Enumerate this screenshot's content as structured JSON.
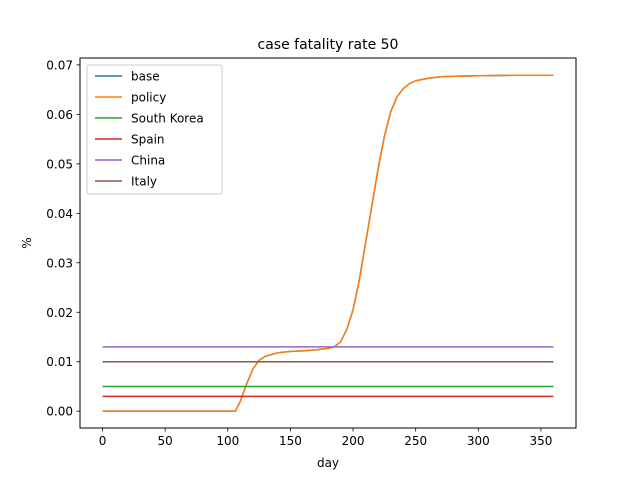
{
  "chart_data": {
    "type": "line",
    "title": "case fatality rate 50",
    "xlabel": "day",
    "ylabel": "%",
    "xlim": [
      -18,
      378
    ],
    "ylim": [
      -0.0034,
      0.0714
    ],
    "xticks": [
      0,
      50,
      100,
      150,
      200,
      250,
      300,
      350
    ],
    "yticks": [
      0.0,
      0.01,
      0.02,
      0.03,
      0.04,
      0.05,
      0.06,
      0.07
    ],
    "ytick_labels": [
      "0.00",
      "0.01",
      "0.02",
      "0.03",
      "0.04",
      "0.05",
      "0.06",
      "0.07"
    ],
    "grid": false,
    "legend_position": "upper-left",
    "series": [
      {
        "name": "base",
        "color": "#1f77b4",
        "points": [
          [
            0,
            0
          ],
          [
            100,
            0
          ],
          [
            106,
            0
          ],
          [
            110,
            0.002
          ],
          [
            115,
            0.0055
          ],
          [
            120,
            0.0085
          ],
          [
            125,
            0.0103
          ],
          [
            130,
            0.0111
          ],
          [
            140,
            0.0118
          ],
          [
            150,
            0.0121
          ],
          [
            160,
            0.0122
          ],
          [
            170,
            0.0124
          ],
          [
            180,
            0.0127
          ],
          [
            185,
            0.013
          ],
          [
            190,
            0.014
          ],
          [
            195,
            0.0165
          ],
          [
            200,
            0.0205
          ],
          [
            205,
            0.0265
          ],
          [
            210,
            0.034
          ],
          [
            215,
            0.0415
          ],
          [
            220,
            0.049
          ],
          [
            225,
            0.0555
          ],
          [
            230,
            0.0605
          ],
          [
            235,
            0.0635
          ],
          [
            240,
            0.0652
          ],
          [
            245,
            0.0662
          ],
          [
            250,
            0.0668
          ],
          [
            260,
            0.0673
          ],
          [
            270,
            0.0676
          ],
          [
            280,
            0.0677
          ],
          [
            300,
            0.0678
          ],
          [
            330,
            0.0679
          ],
          [
            360,
            0.0679
          ]
        ]
      },
      {
        "name": "policy",
        "color": "#ff7f0e",
        "points": [
          [
            0,
            0
          ],
          [
            100,
            0
          ],
          [
            106,
            0
          ],
          [
            110,
            0.002
          ],
          [
            115,
            0.0055
          ],
          [
            120,
            0.0085
          ],
          [
            125,
            0.0103
          ],
          [
            130,
            0.0111
          ],
          [
            140,
            0.0118
          ],
          [
            150,
            0.0121
          ],
          [
            160,
            0.0122
          ],
          [
            170,
            0.0124
          ],
          [
            180,
            0.0127
          ],
          [
            185,
            0.013
          ],
          [
            190,
            0.014
          ],
          [
            195,
            0.0165
          ],
          [
            200,
            0.0205
          ],
          [
            205,
            0.0265
          ],
          [
            210,
            0.034
          ],
          [
            215,
            0.0415
          ],
          [
            220,
            0.049
          ],
          [
            225,
            0.0555
          ],
          [
            230,
            0.0605
          ],
          [
            235,
            0.0635
          ],
          [
            240,
            0.0652
          ],
          [
            245,
            0.0662
          ],
          [
            250,
            0.0668
          ],
          [
            260,
            0.0673
          ],
          [
            270,
            0.0676
          ],
          [
            280,
            0.0677
          ],
          [
            300,
            0.0678
          ],
          [
            330,
            0.0679
          ],
          [
            360,
            0.0679
          ]
        ]
      },
      {
        "name": "South Korea",
        "color": "#2ca02c",
        "points": [
          [
            0,
            0.005
          ],
          [
            360,
            0.005
          ]
        ]
      },
      {
        "name": "Spain",
        "color": "#d62728",
        "points": [
          [
            0,
            0.003
          ],
          [
            360,
            0.003
          ]
        ]
      },
      {
        "name": "China",
        "color": "#9467bd",
        "points": [
          [
            0,
            0.013
          ],
          [
            360,
            0.013
          ]
        ]
      },
      {
        "name": "Italy",
        "color": "#8c564b",
        "points": [
          [
            0,
            0.01
          ],
          [
            360,
            0.01
          ]
        ]
      }
    ]
  }
}
